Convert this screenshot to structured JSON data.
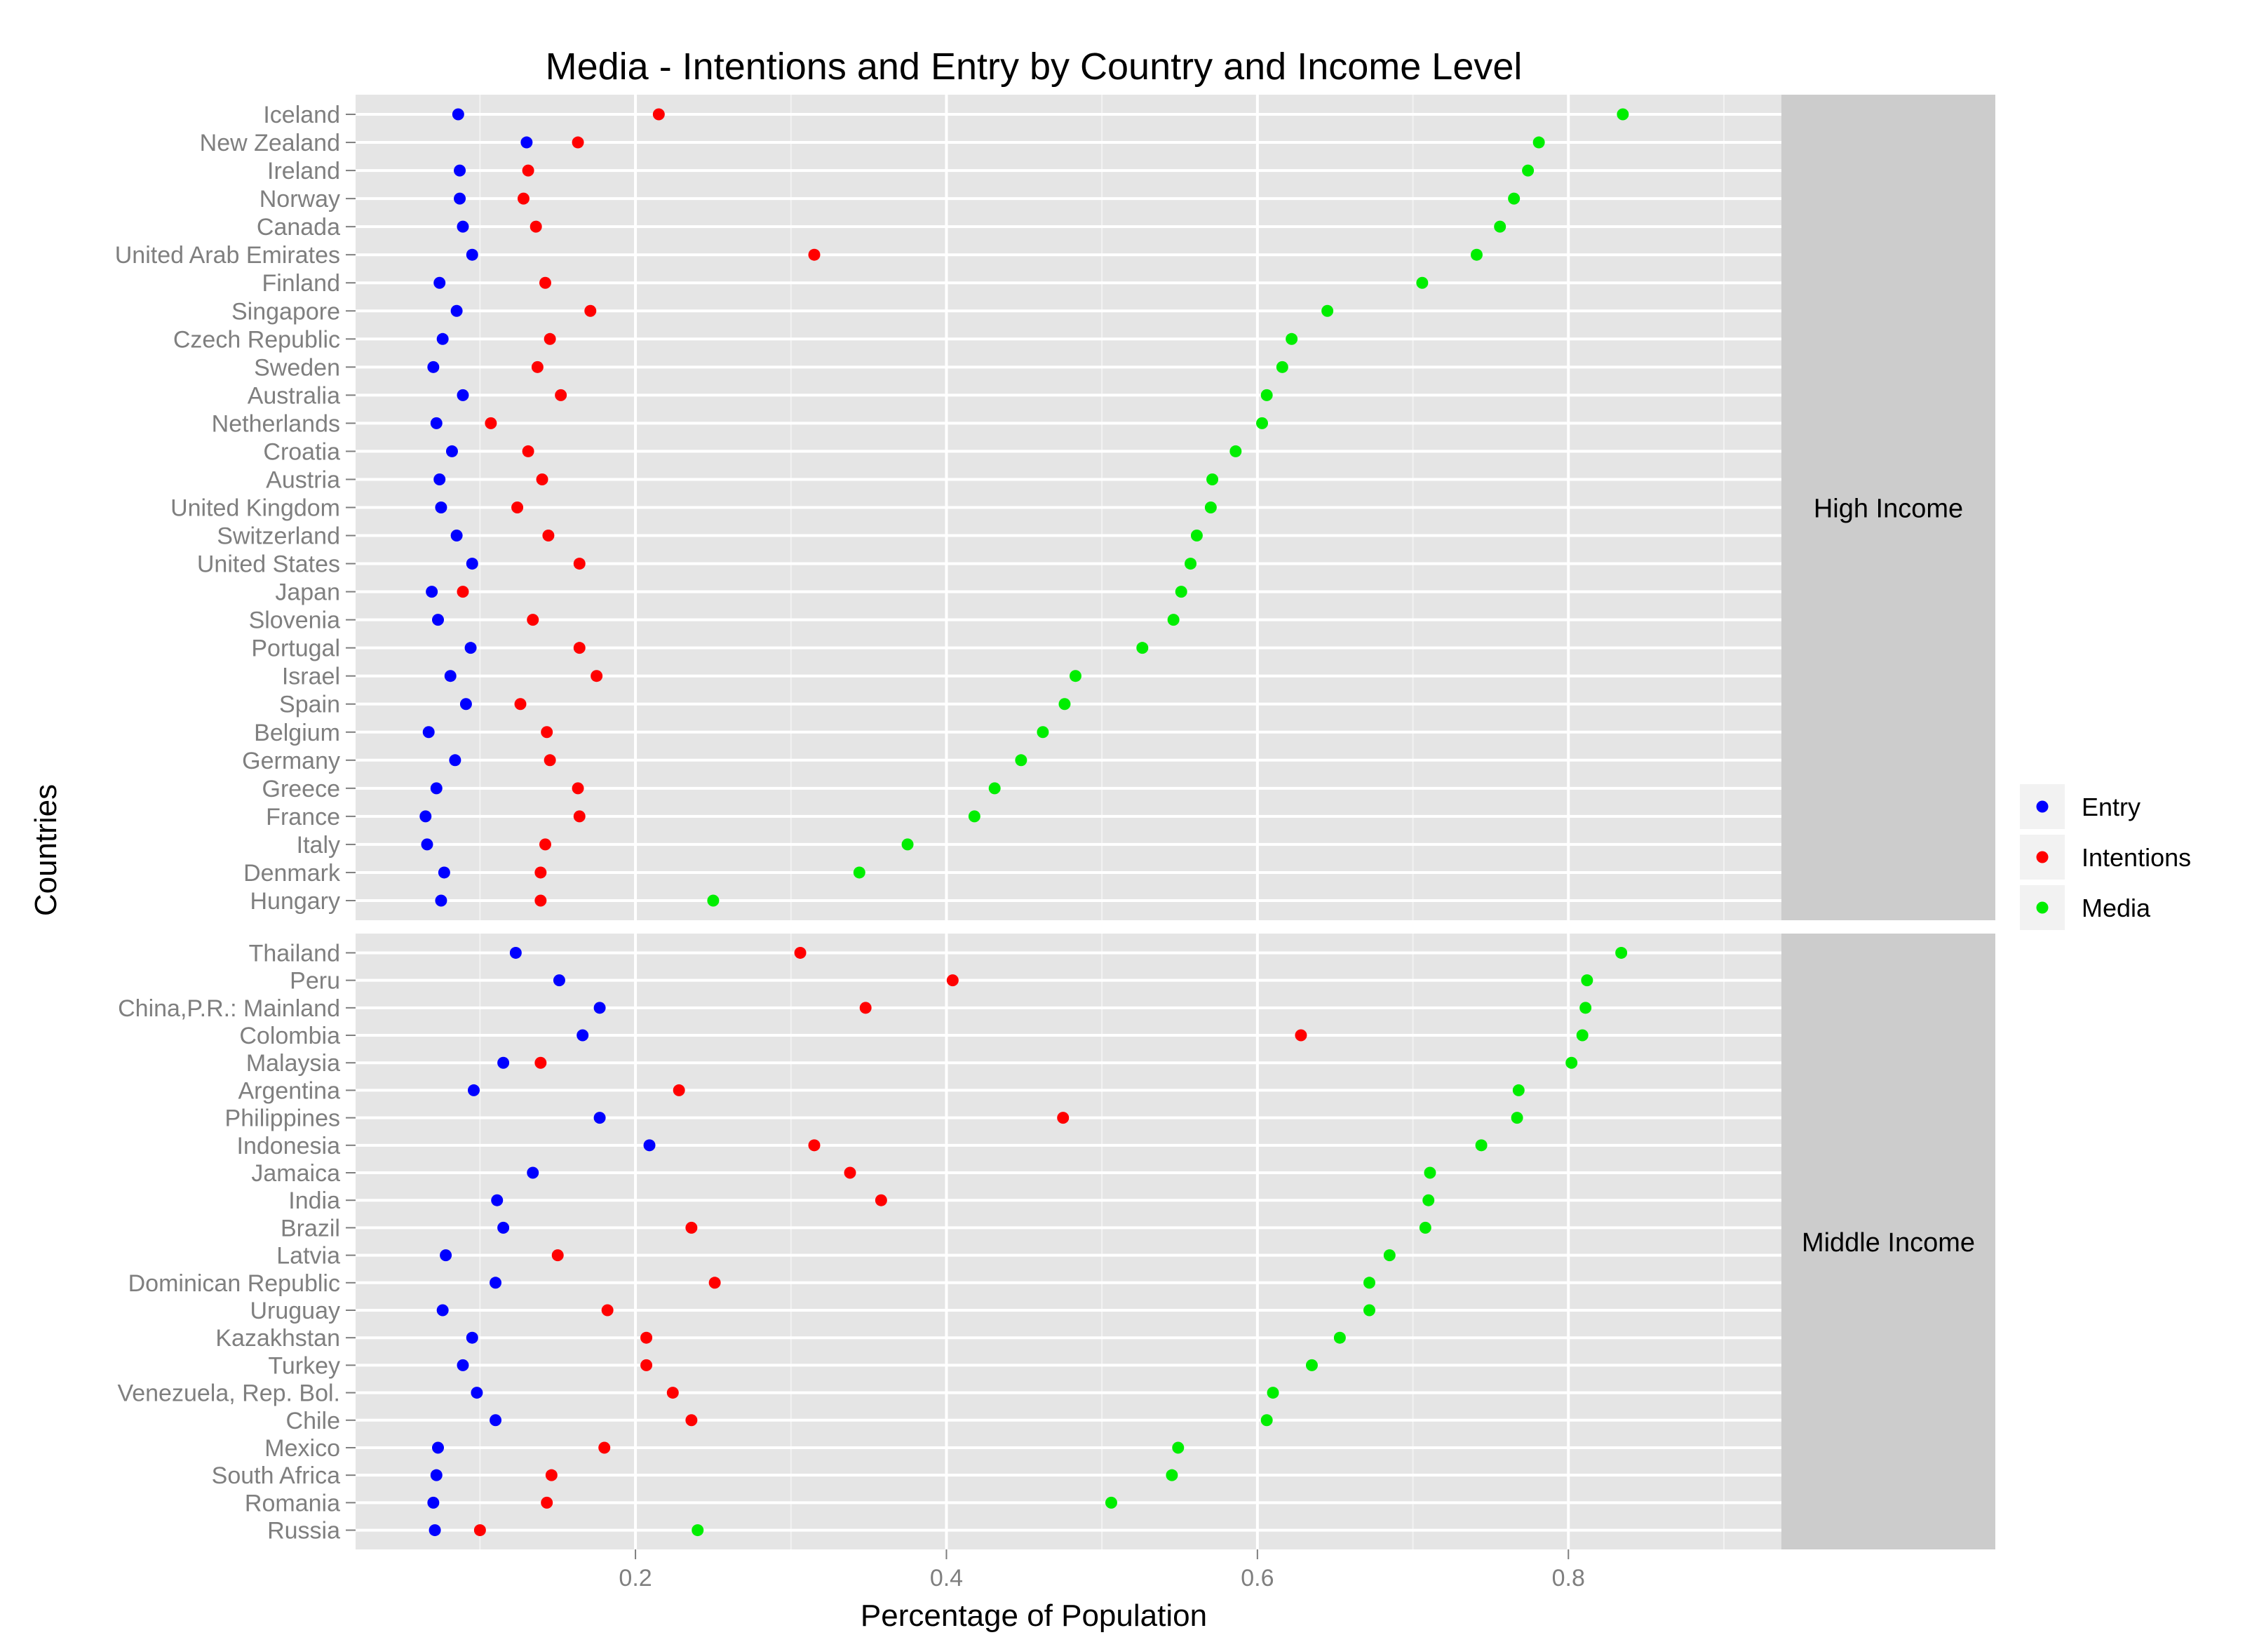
{
  "chart_data": {
    "type": "scatter",
    "title": "Media - Intentions and Entry by Country and Income Level",
    "xlabel": "Percentage of Population",
    "ylabel": "Countries",
    "xlim": [
      0.02,
      0.937
    ],
    "x_ticks": [
      0.2,
      0.4,
      0.6,
      0.8
    ],
    "x_tick_labels": [
      "0.2",
      "0.4",
      "0.6",
      "0.8"
    ],
    "grid": true,
    "legend_position": "right",
    "series_colors": {
      "Entry": "#0000ff",
      "Intentions": "#ff0000",
      "Media": "#00ee00"
    },
    "legend": [
      {
        "name": "Entry",
        "color": "#0000ff"
      },
      {
        "name": "Intentions",
        "color": "#ff0000"
      },
      {
        "name": "Media",
        "color": "#00ee00"
      }
    ],
    "panels": [
      {
        "name": "High Income",
        "countries": [
          "Iceland",
          "New Zealand",
          "Ireland",
          "Norway",
          "Canada",
          "United Arab Emirates",
          "Finland",
          "Singapore",
          "Czech Republic",
          "Sweden",
          "Australia",
          "Netherlands",
          "Croatia",
          "Austria",
          "United Kingdom",
          "Switzerland",
          "United States",
          "Japan",
          "Slovenia",
          "Portugal",
          "Israel",
          "Spain",
          "Belgium",
          "Germany",
          "Greece",
          "France",
          "Italy",
          "Denmark",
          "Hungary"
        ],
        "series": [
          {
            "name": "Entry",
            "values": [
              0.086,
              0.13,
              0.087,
              0.087,
              0.089,
              0.095,
              0.074,
              0.085,
              0.076,
              0.07,
              0.089,
              0.072,
              0.082,
              0.074,
              0.075,
              0.085,
              0.095,
              0.069,
              0.073,
              0.094,
              0.081,
              0.091,
              0.067,
              0.084,
              0.072,
              0.065,
              0.066,
              0.077,
              0.075
            ]
          },
          {
            "name": "Intentions",
            "values": [
              0.215,
              0.163,
              0.131,
              0.128,
              0.136,
              0.315,
              0.142,
              0.171,
              0.145,
              0.137,
              0.152,
              0.107,
              0.131,
              0.14,
              0.124,
              0.144,
              0.164,
              0.089,
              0.134,
              0.164,
              0.175,
              0.126,
              0.143,
              0.145,
              0.163,
              0.164,
              0.142,
              0.139,
              0.139
            ]
          },
          {
            "name": "Media",
            "values": [
              0.835,
              0.781,
              0.774,
              0.765,
              0.756,
              0.741,
              0.706,
              0.645,
              0.622,
              0.616,
              0.606,
              0.603,
              0.586,
              0.571,
              0.57,
              0.561,
              0.557,
              0.551,
              0.546,
              0.526,
              0.483,
              0.476,
              0.462,
              0.448,
              0.431,
              0.418,
              0.375,
              0.344,
              0.25
            ]
          }
        ]
      },
      {
        "name": "Middle Income",
        "countries": [
          "Thailand",
          "Peru",
          "China,P.R.: Mainland",
          "Colombia",
          "Malaysia",
          "Argentina",
          "Philippines",
          "Indonesia",
          "Jamaica",
          "India",
          "Brazil",
          "Latvia",
          "Dominican Republic",
          "Uruguay",
          "Kazakhstan",
          "Turkey",
          "Venezuela, Rep. Bol.",
          "Chile",
          "Mexico",
          "South Africa",
          "Romania",
          "Russia"
        ],
        "series": [
          {
            "name": "Entry",
            "values": [
              0.123,
              0.151,
              0.177,
              0.166,
              0.115,
              0.096,
              0.177,
              0.209,
              0.134,
              0.111,
              0.115,
              0.078,
              0.11,
              0.076,
              0.095,
              0.089,
              0.098,
              0.11,
              0.073,
              0.072,
              0.07,
              0.071
            ]
          },
          {
            "name": "Intentions",
            "values": [
              0.306,
              0.404,
              0.348,
              0.628,
              0.139,
              0.228,
              0.475,
              0.315,
              0.338,
              0.358,
              0.236,
              0.15,
              0.251,
              0.182,
              0.207,
              0.207,
              0.224,
              0.236,
              0.18,
              0.146,
              0.143,
              0.1
            ]
          },
          {
            "name": "Media",
            "values": [
              0.834,
              0.812,
              0.811,
              0.809,
              0.802,
              0.768,
              0.767,
              0.744,
              0.711,
              0.71,
              0.708,
              0.685,
              0.672,
              0.672,
              0.653,
              0.635,
              0.61,
              0.606,
              0.549,
              0.545,
              0.506,
              0.24
            ]
          }
        ]
      }
    ]
  }
}
